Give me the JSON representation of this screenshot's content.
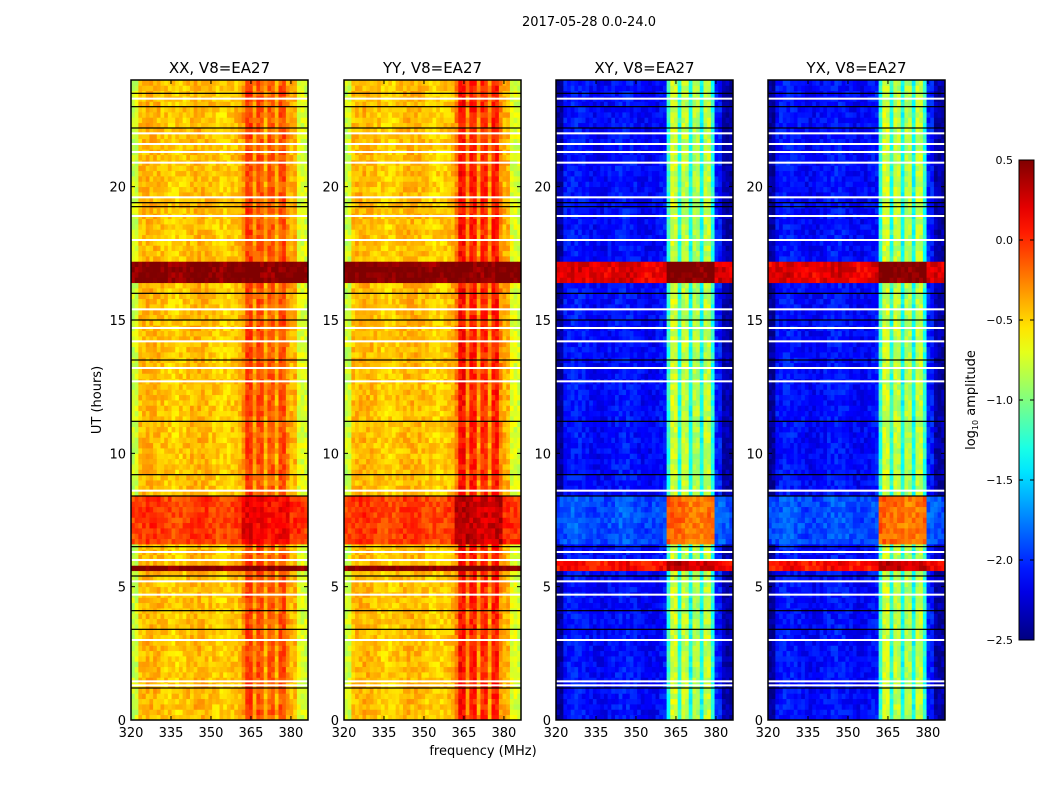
{
  "chart_data": {
    "type": "heatmap",
    "title": "2017-05-28 0.0-24.0",
    "xlabel": "frequency (MHz)",
    "ylabel": "UT (hours)",
    "colorbar_label": "log10 amplitude",
    "colorbar_label_main": "log",
    "colorbar_label_sub": "10",
    "colorbar_label_rest": " amplitude",
    "colormap": "jet",
    "clim": [
      -2.5,
      0.5
    ],
    "colorbar_ticks": [
      "0.5",
      "0.0",
      "−0.5",
      "−1.0",
      "−1.5",
      "−2.0",
      "−2.5"
    ],
    "colorbar_tick_values": [
      0.5,
      0.0,
      -0.5,
      -1.0,
      -1.5,
      -2.0,
      -2.5
    ],
    "xlim": [
      320,
      386.4
    ],
    "ylim": [
      0,
      24
    ],
    "xticks": [
      320,
      335,
      350,
      365,
      380
    ],
    "xtick_labels": [
      "320",
      "335",
      "350",
      "365",
      "380"
    ],
    "yticks": [
      0,
      5,
      10,
      15,
      20
    ],
    "ytick_labels": [
      "0",
      "5",
      "10",
      "15",
      "20"
    ],
    "rfi_band_MHz": [
      362,
      380
    ],
    "rfi_channels_MHz": [
      [
        362.5,
        365.5
      ],
      [
        366.5,
        370
      ],
      [
        371,
        374
      ],
      [
        375.5,
        378.5
      ]
    ],
    "flagged_white_hours": [
      1.3,
      1.45,
      3.0,
      4.7,
      5.2,
      6.0,
      6.3,
      8.6,
      12.7,
      13.2,
      14.2,
      14.7,
      15.4,
      18.0,
      18.9,
      19.6,
      20.9,
      21.3,
      21.6,
      22.0,
      23.3
    ],
    "flagged_black_hours": [
      1.2,
      3.4,
      4.1,
      5.4,
      6.5,
      8.4,
      9.2,
      11.2,
      13.5,
      15.0,
      16.0,
      19.25,
      19.4,
      22.2,
      23.0,
      23.5
    ],
    "panels": [
      {
        "title": "XX, V8=EA27",
        "base": -0.45,
        "edge": -0.75,
        "band": -0.1,
        "gap": -0.35,
        "events": [
          {
            "t": [
              16.4,
              17.2
            ],
            "v": 0.5,
            "band": 0.5
          },
          {
            "t": [
              5.55,
              5.85
            ],
            "v": 0.5,
            "band": 0.5
          },
          {
            "t": [
              6.6,
              8.3
            ],
            "v": -0.05,
            "band": 0.15
          }
        ]
      },
      {
        "title": "YY, V8=EA27",
        "base": -0.45,
        "edge": -0.75,
        "band": 0.05,
        "gap": -0.3,
        "events": [
          {
            "t": [
              16.4,
              17.2
            ],
            "v": 0.5,
            "band": 0.5
          },
          {
            "t": [
              5.55,
              5.85
            ],
            "v": 0.5,
            "band": 0.5
          },
          {
            "t": [
              6.6,
              8.3
            ],
            "v": -0.05,
            "band": 0.3
          }
        ]
      },
      {
        "title": "XY, V8=EA27",
        "base": -2.1,
        "edge": -2.4,
        "band": -0.8,
        "gap": -1.3,
        "events": [
          {
            "t": [
              16.4,
              17.2
            ],
            "v": 0.2,
            "band": 0.5
          },
          {
            "t": [
              5.6,
              5.9
            ],
            "v": 0.1,
            "band": 0.3
          },
          {
            "t": [
              6.6,
              8.3
            ],
            "v": -1.9,
            "band": -0.2
          }
        ]
      },
      {
        "title": "YX, V8=EA27",
        "base": -2.1,
        "edge": -2.4,
        "band": -0.8,
        "gap": -1.3,
        "events": [
          {
            "t": [
              16.4,
              17.2
            ],
            "v": 0.2,
            "band": 0.5
          },
          {
            "t": [
              5.6,
              5.9
            ],
            "v": 0.1,
            "band": 0.3
          },
          {
            "t": [
              6.6,
              8.3
            ],
            "v": -1.9,
            "band": -0.2
          }
        ]
      }
    ]
  }
}
